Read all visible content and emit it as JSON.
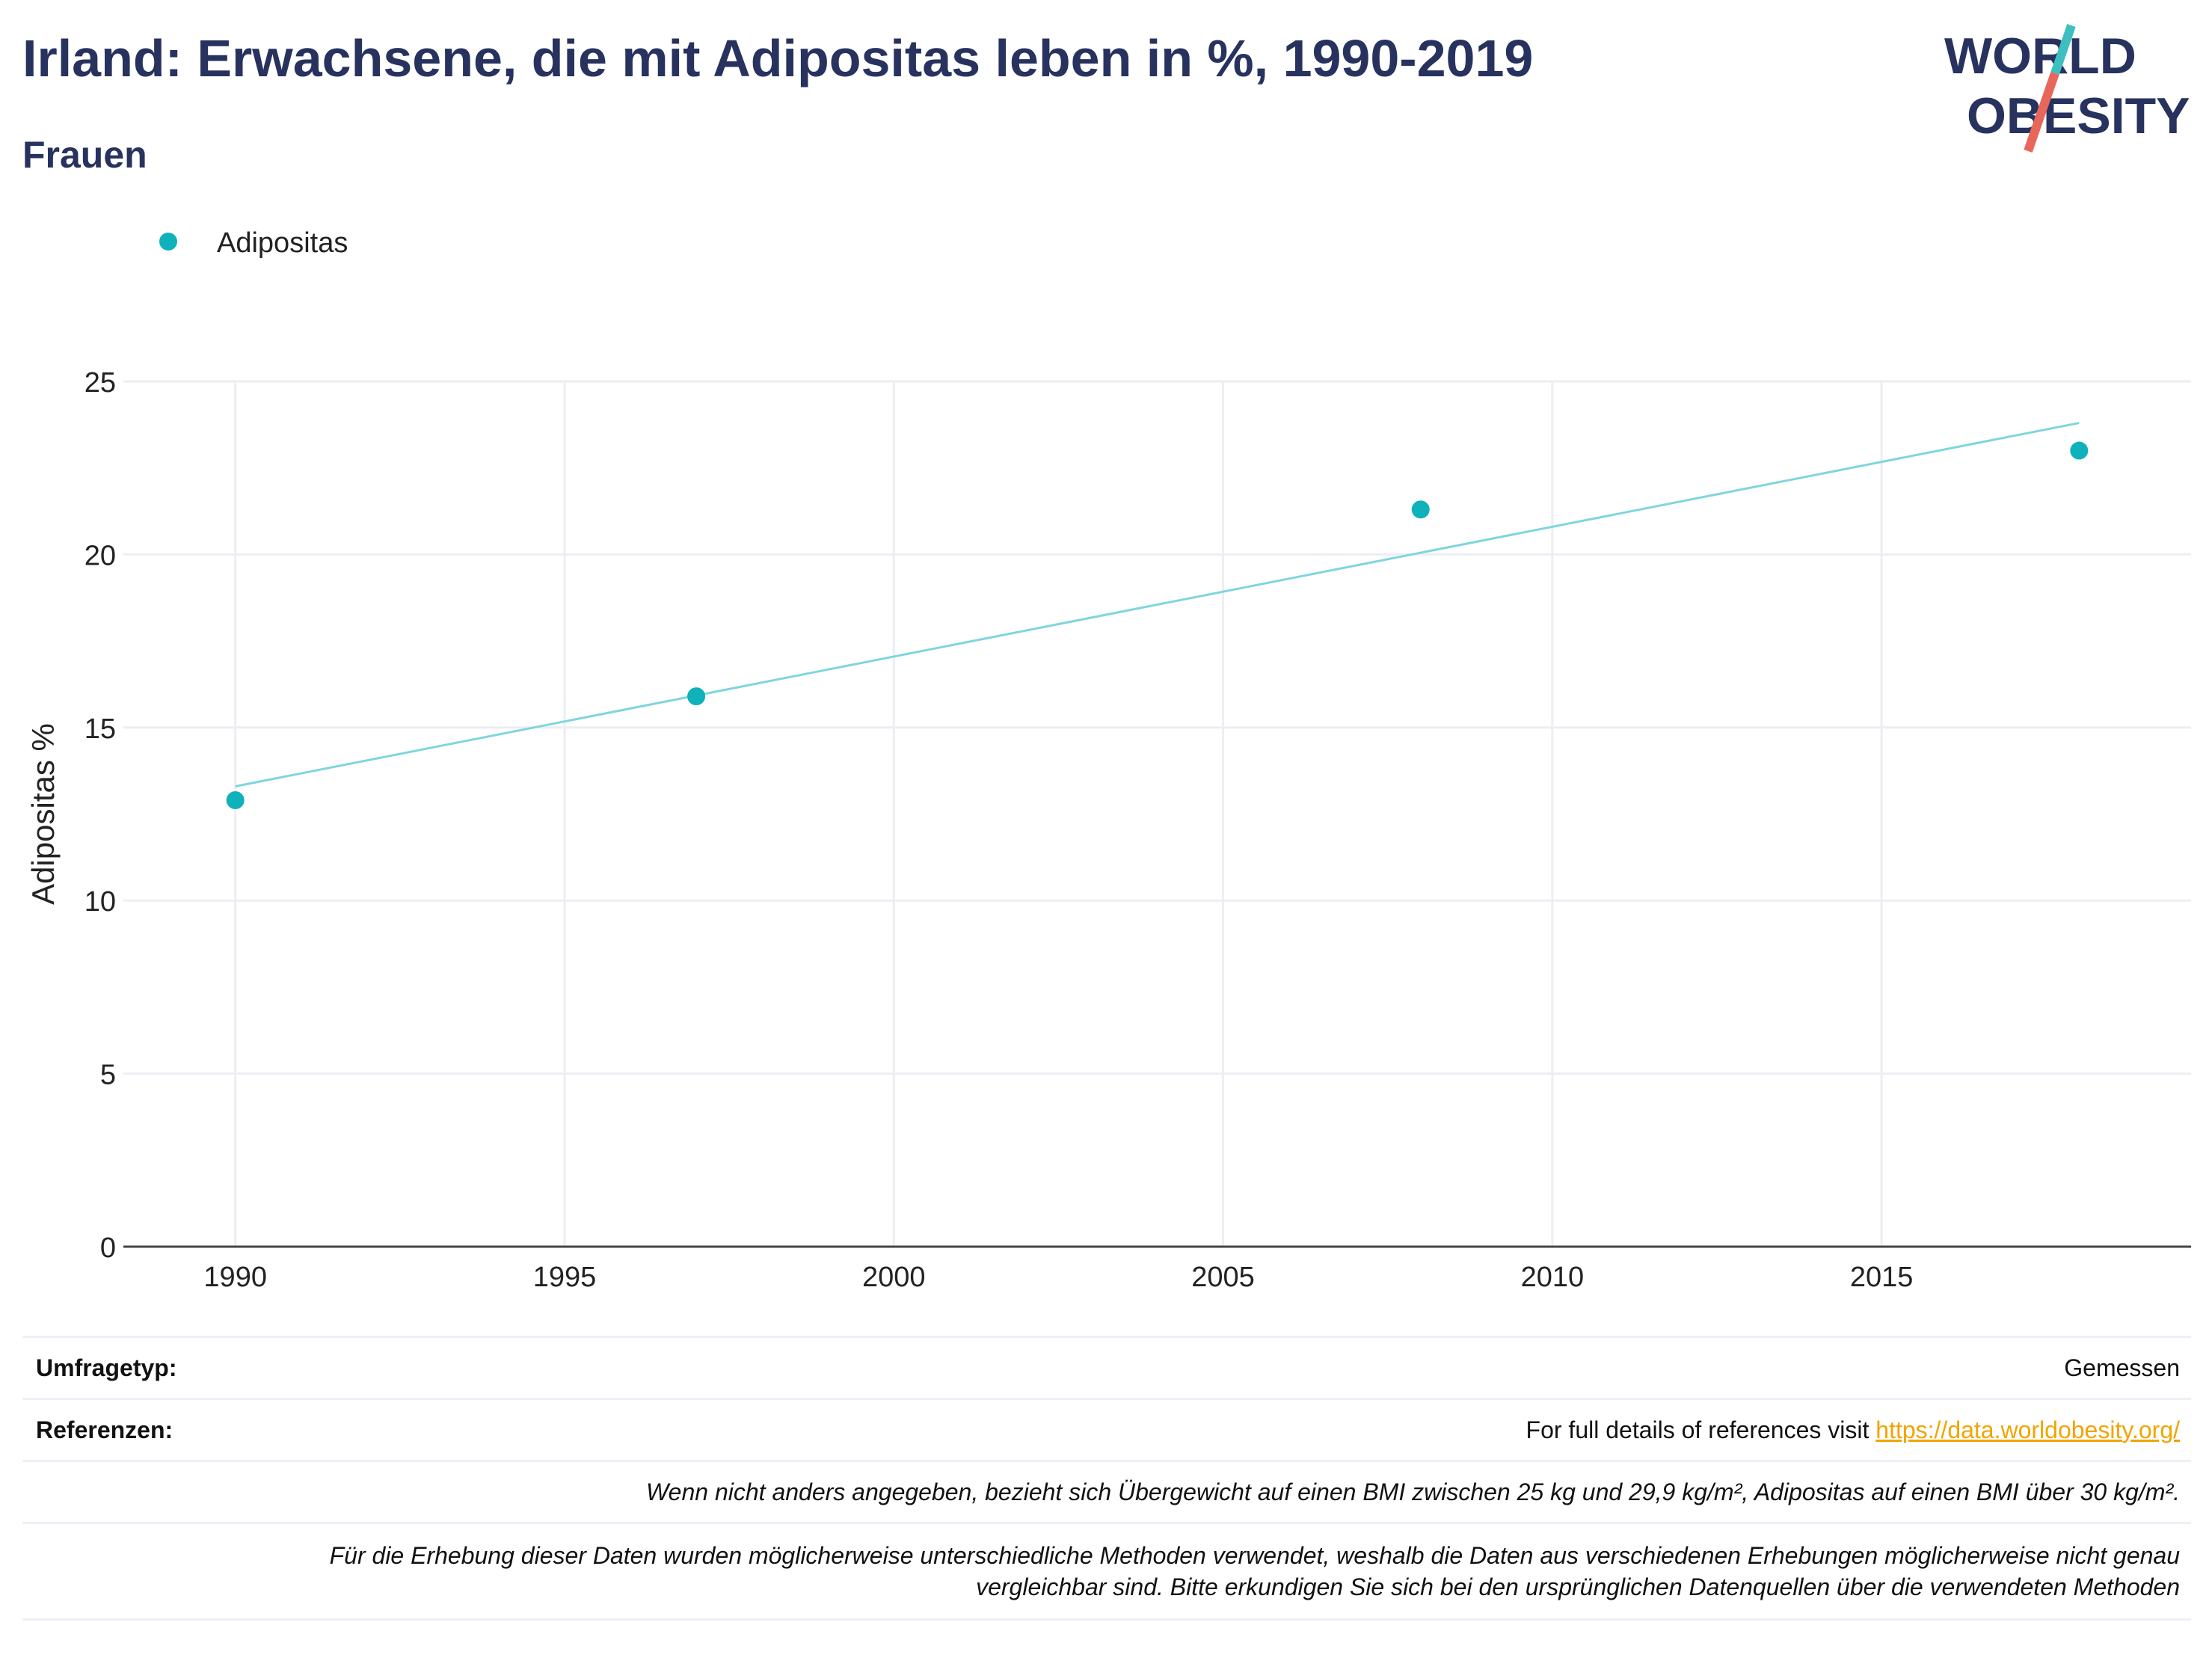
{
  "header": {
    "title": "Irland: Erwachsene, die mit Adipositas leben in %, 1990-2019",
    "subtitle": "Frauen"
  },
  "logo": {
    "line1": "WORLD",
    "line2": "OBESITY",
    "colors": {
      "text": "#27325e",
      "slash_top": "#3dbfbf",
      "slash_bottom": "#e8675a"
    }
  },
  "colors": {
    "point": "#0fb1bb",
    "trend": "#7fd6dc",
    "grid": "#eceef3",
    "axis": "#444444",
    "text": "#222222",
    "title": "#27325e",
    "link": "#f0a500"
  },
  "chart_data": {
    "type": "scatter",
    "legend": {
      "position": "top-left",
      "entries": [
        "Adipositas"
      ]
    },
    "series": [
      {
        "name": "Adipositas",
        "x": [
          1990,
          1997,
          2008,
          2018
        ],
        "y": [
          12.9,
          15.9,
          21.3,
          23.0
        ]
      }
    ],
    "trendline": {
      "x": [
        1990,
        2018
      ],
      "y": [
        13.3,
        23.8
      ]
    },
    "xlim": [
      1988.3,
      2019.7
    ],
    "ylim": [
      0,
      25
    ],
    "xticks": [
      1990,
      1995,
      2000,
      2005,
      2010,
      2015
    ],
    "yticks": [
      0,
      5,
      10,
      15,
      20,
      25
    ],
    "ylabel": "Adipositas %",
    "xlabel": "",
    "grid": true
  },
  "meta": {
    "survey_label": "Umfragetyp:",
    "survey_value": "Gemessen",
    "references_label": "Referenzen:",
    "references_text": "For full details of references visit ",
    "references_link": "https://data.worldobesity.org/",
    "note1": "Wenn nicht anders angegeben, bezieht sich Übergewicht auf einen BMI zwischen 25 kg und 29,9 kg/m², Adipositas auf einen BMI über 30 kg/m².",
    "note2_line1": "Für die Erhebung dieser Daten wurden möglicherweise unterschiedliche Methoden verwendet, weshalb die Daten aus verschiedenen Erhebungen möglicherweise nicht genau",
    "note2_line2": "vergleichbar sind. Bitte erkundigen Sie sich bei den ursprünglichen Datenquellen über die verwendeten Methoden"
  }
}
